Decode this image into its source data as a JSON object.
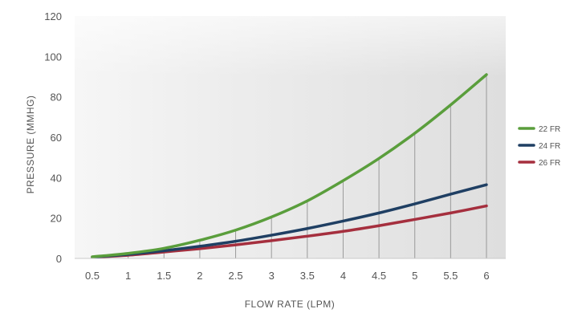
{
  "chart_data": {
    "type": "line",
    "xlabel": "FLOW RATE (LPM)",
    "ylabel": "PRESSURE (MMHG)",
    "xlim": [
      0.5,
      6
    ],
    "ylim": [
      0,
      120
    ],
    "x_ticks": [
      "0.5",
      "1",
      "1.5",
      "2",
      "2.5",
      "3",
      "3.5",
      "4",
      "4.5",
      "5",
      "5.5",
      "6"
    ],
    "y_ticks": [
      "0",
      "20",
      "40",
      "60",
      "80",
      "100",
      "120"
    ],
    "x": [
      0.5,
      1,
      1.5,
      2,
      2.5,
      3,
      3.5,
      4,
      4.5,
      5,
      5.5,
      6
    ],
    "series": [
      {
        "name": "22 FR",
        "color": "#5a9e3c",
        "values": [
          0.8,
          2.5,
          5,
          9,
          14,
          20.5,
          28.5,
          38.5,
          49.5,
          62,
          76,
          91
        ]
      },
      {
        "name": "24 FR",
        "color": "#1f3f63",
        "values": [
          0.7,
          2,
          3.8,
          6,
          8.5,
          11.5,
          14.8,
          18.5,
          22.5,
          27,
          31.8,
          36.5
        ]
      },
      {
        "name": "26 FR",
        "color": "#a52f3e",
        "values": [
          0.6,
          1.6,
          3.2,
          4.8,
          6.7,
          8.8,
          11,
          13.4,
          16.2,
          19.3,
          22.5,
          26
        ]
      }
    ],
    "legend_position": "right",
    "background": "gray-gradient",
    "vertical_drop_lines": true
  }
}
